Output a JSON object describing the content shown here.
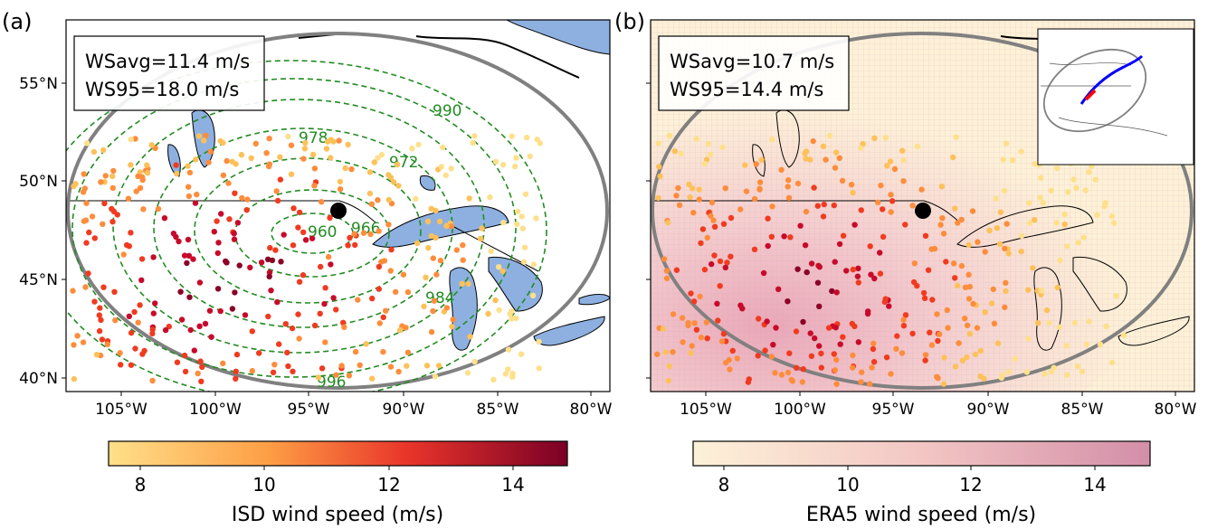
{
  "panels": [
    {
      "letter": "(a)",
      "stats": [
        "WSavg=11.4 m/s",
        "WS95=18.0 m/s"
      ],
      "colorbar_label": "ISD wind speed (m/s)",
      "colorbar_ticks": [
        "8",
        "10",
        "12",
        "14"
      ],
      "isobar_labels": [
        "990",
        "978",
        "972",
        "960",
        "966",
        "984",
        "996"
      ]
    },
    {
      "letter": "(b)",
      "stats": [
        "WSavg=10.7 m/s",
        "WS95=14.4 m/s"
      ],
      "colorbar_label": "ERA5 wind speed (m/s)",
      "colorbar_ticks": [
        "8",
        "10",
        "12",
        "14"
      ]
    }
  ],
  "axes": {
    "lat_labels": [
      "55°N",
      "50°N",
      "45°N",
      "40°N"
    ],
    "lon_labels": [
      "105°W",
      "100°W",
      "95°W",
      "90°W",
      "85°W",
      "80°W"
    ]
  },
  "colors": {
    "isobar": "#228B22",
    "lake": "#8db0e0",
    "ellipse": "#808080",
    "wind_low": "#ffe08a",
    "wind_high": "#7a0026",
    "era5_low": "#fdf1d8",
    "era5_high": "#d68fa8",
    "track": "#0000ff",
    "track_recent": "#ff0000"
  }
}
